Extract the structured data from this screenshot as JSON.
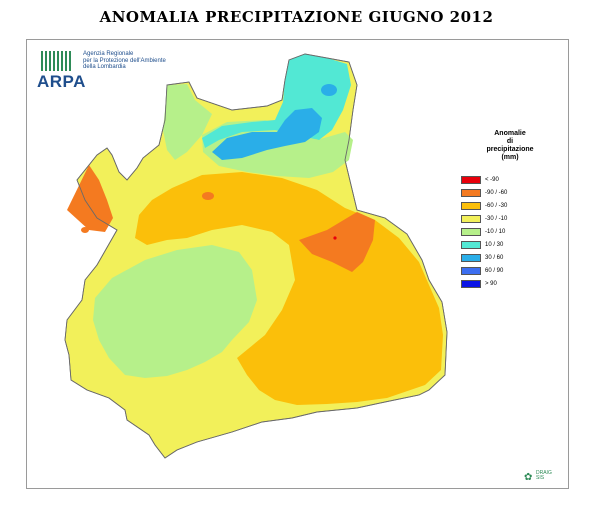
{
  "title": "ANOMALIA PRECIPITAZIONE GIUGNO 2012",
  "logo": {
    "name": "ARPA",
    "line1": "Agenzia Regionale",
    "line2": "per la Protezione dell'Ambiente",
    "line3": "della Lombardia"
  },
  "legend": {
    "title_line1": "Anomalie",
    "title_line2": "di",
    "title_line3": "precipitazione",
    "title_line4": "(mm)",
    "items": [
      {
        "label": "< -90",
        "color": "#e8000b"
      },
      {
        "label": "-90 / -60",
        "color": "#f47a20"
      },
      {
        "label": "-60 / -30",
        "color": "#fbbf0a"
      },
      {
        "label": "-30 / -10",
        "color": "#f2f05a"
      },
      {
        "label": "-10 / 10",
        "color": "#b6f08a"
      },
      {
        "label": "10 / 30",
        "color": "#52e8d4"
      },
      {
        "label": "30 / 60",
        "color": "#2aaee8"
      },
      {
        "label": "60 / 90",
        "color": "#3c6ef0"
      },
      {
        "label": "> 90",
        "color": "#0a14e6"
      }
    ]
  },
  "credit": {
    "line1": "DRAIG",
    "line2": "SIS"
  }
}
